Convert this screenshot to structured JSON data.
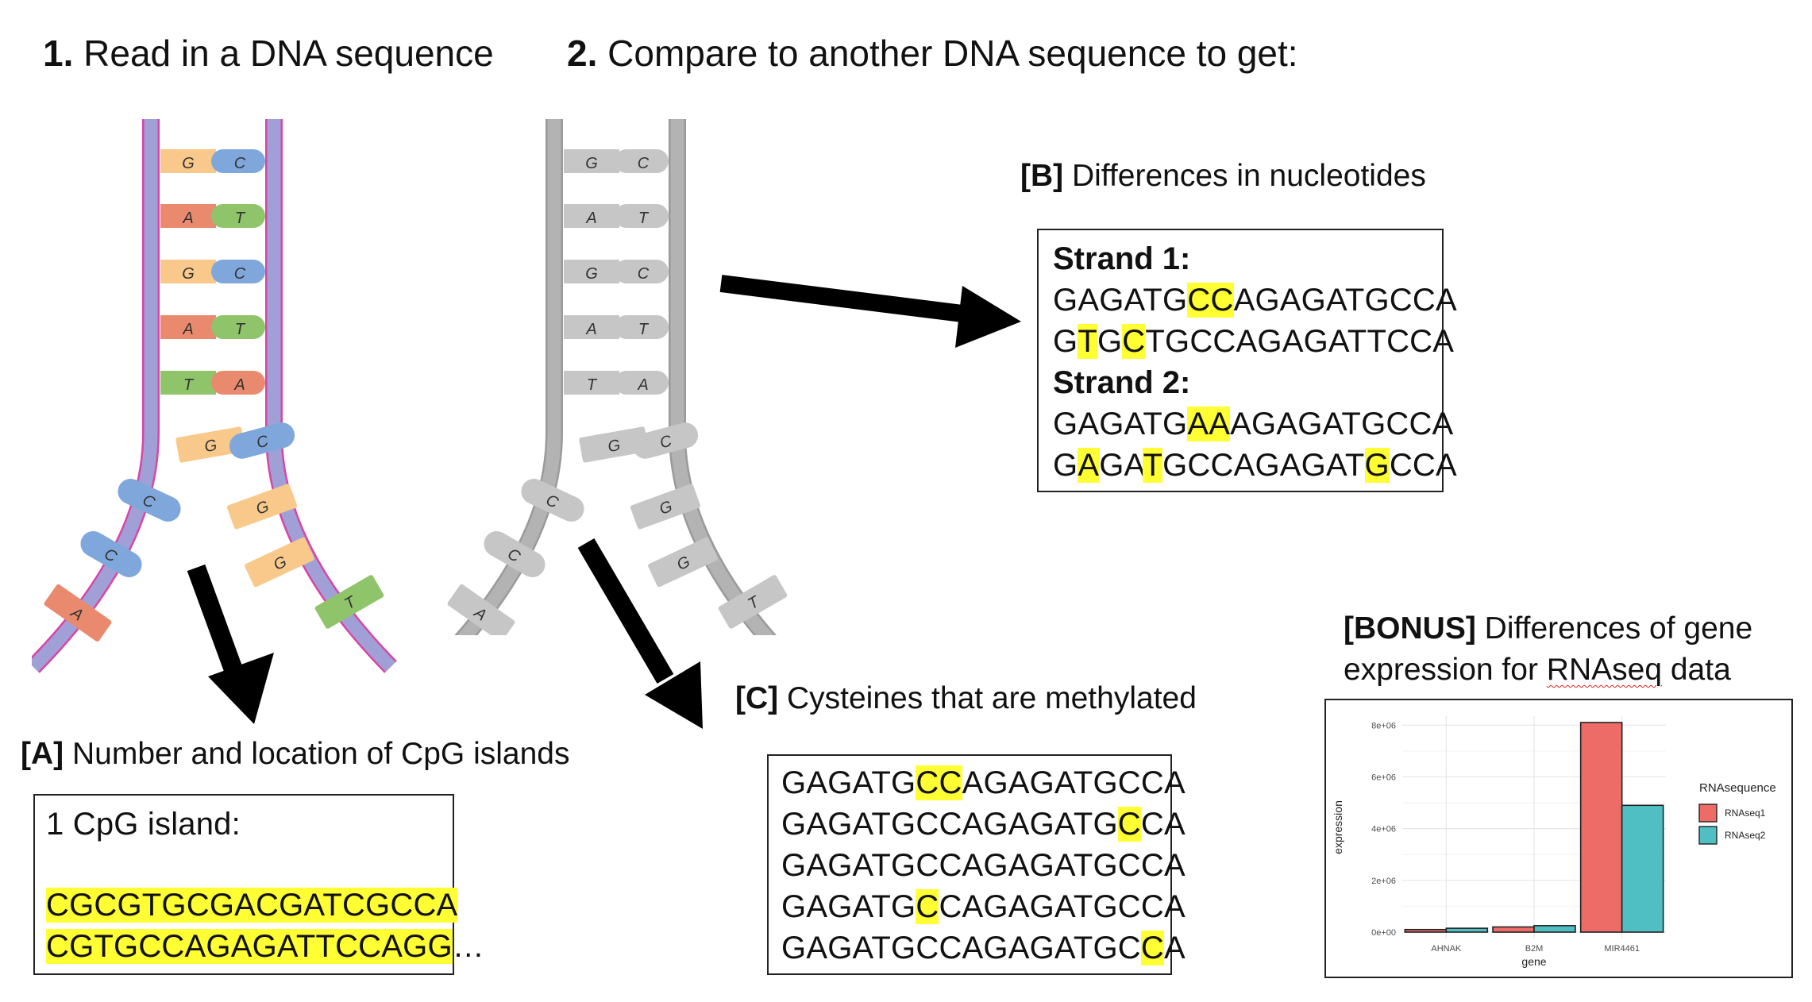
{
  "step1": {
    "num": "1.",
    "text": " Read in a DNA sequence"
  },
  "step2": {
    "num": "2.",
    "text": " Compare to another DNA sequence to get:"
  },
  "colors": {
    "G": "#f8c98a",
    "C": "#7fa7dc",
    "A": "#e98a6e",
    "T": "#8fc46b",
    "backbone_fill": "#a0a0d6",
    "backbone_edge": "#d845a7",
    "gray_backbone": "#b3b3b3",
    "gray_base": "#c6c6c6",
    "highlight": "#ffff33",
    "arrow": "#000000"
  },
  "helix_pairs": [
    {
      "left": "G",
      "right": "C"
    },
    {
      "left": "A",
      "right": "T"
    },
    {
      "left": "G",
      "right": "C"
    },
    {
      "left": "A",
      "right": "T"
    },
    {
      "left": "T",
      "right": "A"
    }
  ],
  "helix_loose": [
    {
      "base": "G"
    },
    {
      "base": "C"
    },
    {
      "base": "C"
    },
    {
      "base": "G"
    },
    {
      "base": "C"
    },
    {
      "base": "G"
    },
    {
      "base": "A"
    },
    {
      "base": "T"
    }
  ],
  "section_a": {
    "tag": "[A]",
    "text": " Number and location of CpG islands",
    "box_title": "1 CpG island:",
    "line1": "CGCGTGCGACGATCGCCA",
    "line2": "CGTGCCAGAGATTCCAGG",
    "line2_suffix": "…"
  },
  "section_b": {
    "tag": "[B]",
    "text": " Differences in nucleotides",
    "strand1_title": "Strand 1:",
    "strand1_lines": [
      [
        {
          "t": "GAGATG",
          "h": false
        },
        {
          "t": "CC",
          "h": true
        },
        {
          "t": "AGAGATGCCA",
          "h": false
        }
      ],
      [
        {
          "t": "G",
          "h": false
        },
        {
          "t": "T",
          "h": true
        },
        {
          "t": "G",
          "h": false
        },
        {
          "t": "C",
          "h": true
        },
        {
          "t": "TGCCAGAGATTCCA",
          "h": false
        }
      ]
    ],
    "strand2_title": "Strand 2:",
    "strand2_lines": [
      [
        {
          "t": "GAGATG",
          "h": false
        },
        {
          "t": "AA",
          "h": true
        },
        {
          "t": "AGAGATGCCA",
          "h": false
        }
      ],
      [
        {
          "t": "G",
          "h": false
        },
        {
          "t": "A",
          "h": true
        },
        {
          "t": "GA",
          "h": false
        },
        {
          "t": "T",
          "h": true
        },
        {
          "t": "GCCAGAGAT",
          "h": false
        },
        {
          "t": "G",
          "h": true
        },
        {
          "t": "CCA",
          "h": false
        }
      ]
    ]
  },
  "section_c": {
    "tag": "[C]",
    "text": " Cysteines that are methylated",
    "lines": [
      [
        {
          "t": "GAGATG",
          "h": false
        },
        {
          "t": "CC",
          "h": true
        },
        {
          "t": "AGAGATGCCA",
          "h": false
        }
      ],
      [
        {
          "t": "GAGATGCCAGAGATG",
          "h": false
        },
        {
          "t": "C",
          "h": true
        },
        {
          "t": "CA",
          "h": false
        }
      ],
      [
        {
          "t": "GAGATGCCAGAGATGCCA",
          "h": false
        }
      ],
      [
        {
          "t": "GAGATG",
          "h": false
        },
        {
          "t": "C",
          "h": true
        },
        {
          "t": "CAGAGATGCCA",
          "h": false
        }
      ],
      [
        {
          "t": "GAGATGCCAGAGATGC",
          "h": false
        },
        {
          "t": "C",
          "h": true
        },
        {
          "t": "A",
          "h": false
        }
      ]
    ]
  },
  "section_bonus": {
    "tag": "[BONUS]",
    "text1": " Differences of gene",
    "text2_pre": "expression for ",
    "text2_word": "RNAseq",
    "text2_post": " data"
  },
  "chart_data": {
    "type": "bar",
    "categories": [
      "AHNAK",
      "B2M",
      "MIR4461"
    ],
    "series": [
      {
        "name": "RNAseq1",
        "color": "#ee6c68",
        "values": [
          100000,
          200000,
          8100000
        ]
      },
      {
        "name": "RNAseq2",
        "color": "#4fbfc3",
        "values": [
          150000,
          250000,
          4900000
        ]
      }
    ],
    "xlabel": "gene",
    "ylabel": "expression",
    "yticks": [
      "0e+00",
      "2e+06",
      "4e+06",
      "6e+06",
      "8e+06"
    ],
    "ytick_values": [
      0,
      2000000,
      4000000,
      6000000,
      8000000
    ],
    "ylim": [
      0,
      8100000
    ],
    "legend_title": "RNAsequence",
    "legend_position": "right",
    "grid": true
  }
}
